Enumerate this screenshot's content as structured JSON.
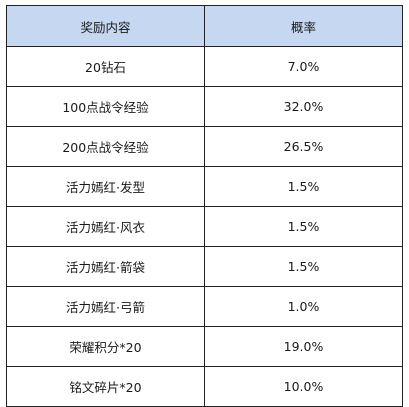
{
  "table": {
    "headers": {
      "item": "奖励内容",
      "rate": "概率"
    },
    "rows": [
      {
        "item": "20钻石",
        "rate": "7.0%"
      },
      {
        "item": "100点战令经验",
        "rate": "32.0%"
      },
      {
        "item": "200点战令经验",
        "rate": "26.5%"
      },
      {
        "item": "活力嫣红·发型",
        "rate": "1.5%"
      },
      {
        "item": "活力嫣红·风衣",
        "rate": "1.5%"
      },
      {
        "item": "活力嫣红·箭袋",
        "rate": "1.5%"
      },
      {
        "item": "活力嫣红·弓箭",
        "rate": "1.0%"
      },
      {
        "item": "荣耀积分*20",
        "rate": "19.0%"
      },
      {
        "item": "铭文碎片*20",
        "rate": "10.0%"
      }
    ]
  },
  "colors": {
    "header_background": "#c5d7f1",
    "border": "#222222",
    "text": "#1a1a1a"
  }
}
